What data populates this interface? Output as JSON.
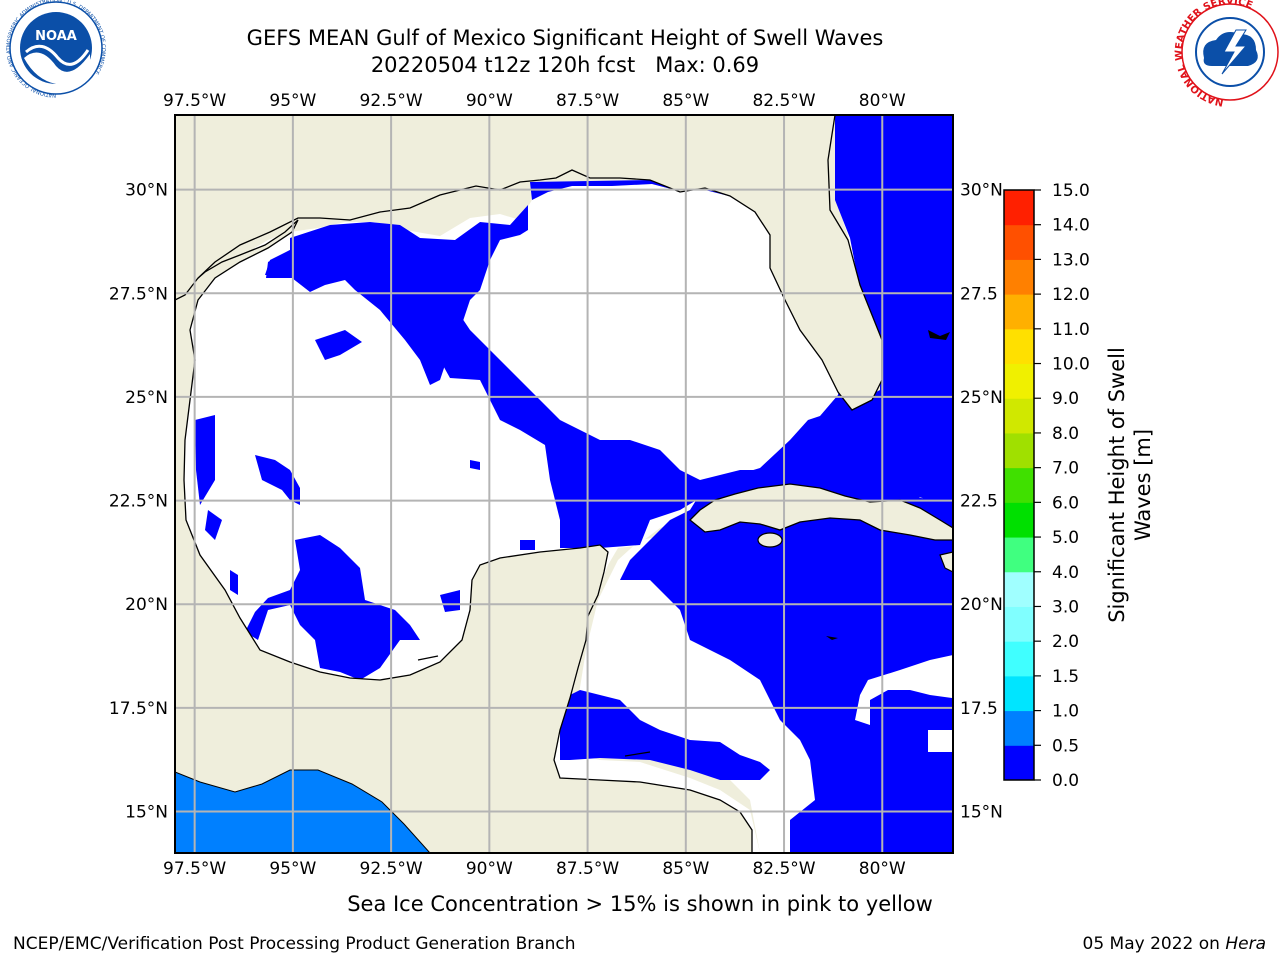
{
  "title": {
    "line1": "GEFS MEAN Gulf of Mexico Significant Height of Swell Waves",
    "line2": "20220504 t12z 120h fcst   Max: 0.69"
  },
  "logos": {
    "noaa": {
      "text": "NOAA",
      "ring_text": "NATIONAL OCEANIC AND ATMOSPHERIC ADMINISTRATION · U.S. DEPARTMENT OF COMMERCE",
      "color": "#0b4fa8"
    },
    "nws": {
      "ring_text": "NATIONAL WEATHER SERVICE",
      "color": "#e0121a"
    }
  },
  "map": {
    "lon_ticks_top": [
      "97.5°W",
      "95°W",
      "92.5°W",
      "90°W",
      "87.5°W",
      "85°W",
      "82.5°W",
      "80°W"
    ],
    "lon_ticks_bottom": [
      "97.5°W",
      "95°W",
      "92.5°W",
      "90°W",
      "87.5°W",
      "85°W",
      "82.5°W",
      "80°W"
    ],
    "lat_ticks_left": [
      "30°N",
      "27.5°N",
      "25°N",
      "22.5°N",
      "20°N",
      "17.5°N",
      "15°N"
    ],
    "lat_ticks_right": [
      "30°N",
      "27.5",
      "25°N",
      "22.5",
      "20°N",
      "17.5",
      "15°N"
    ],
    "lon_values": [
      -97.5,
      -95,
      -92.5,
      -90,
      -87.5,
      -85,
      -82.5,
      -80
    ],
    "lat_values": [
      30,
      27.5,
      25,
      22.5,
      20,
      17.5,
      15
    ],
    "extent": {
      "lon": [
        -98,
        -78.2
      ],
      "lat": [
        14,
        31.8
      ]
    },
    "colors": {
      "land": "#efeedc",
      "ocean_0_0p5": "#0000ff",
      "ocean_0p5_1": "#0080ff",
      "grid": "#b4b4b4"
    }
  },
  "colorbar": {
    "label_line1": "Significant Height of Swell",
    "label_line2": "Waves [m]",
    "ticks": [
      "0.0",
      "0.5",
      "1.0",
      "1.5",
      "2.0",
      "3.0",
      "4.0",
      "5.0",
      "6.0",
      "7.0",
      "8.0",
      "9.0",
      "10.0",
      "11.0",
      "12.0",
      "13.0",
      "14.0",
      "15.0"
    ],
    "colors": [
      "#0000ff",
      "#0080ff",
      "#00e5ff",
      "#40ffff",
      "#80ffff",
      "#a0ffff",
      "#40ff80",
      "#00e000",
      "#40e000",
      "#a0e000",
      "#d0e800",
      "#f0f000",
      "#ffe000",
      "#ffb000",
      "#ff8000",
      "#ff5000",
      "#ff2000"
    ]
  },
  "caption": "Sea Ice Concentration > 15% is shown in pink to yellow",
  "footer": {
    "left": "NCEP/EMC/Verification Post Processing Product Generation Branch",
    "right_date": "05 May 2022 on ",
    "right_host": "Hera"
  }
}
